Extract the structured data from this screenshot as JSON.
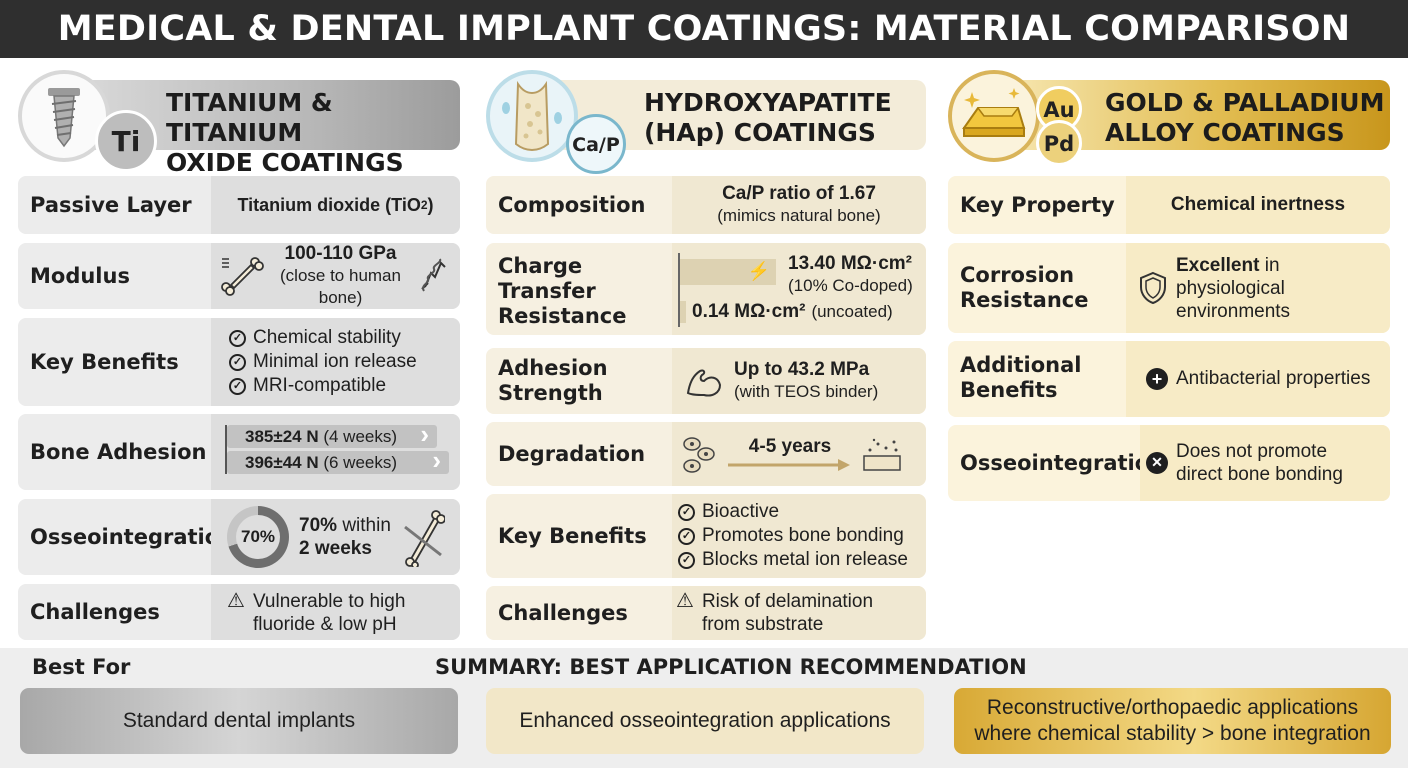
{
  "title": "MEDICAL & DENTAL IMPLANT COATINGS: MATERIAL COMPARISON",
  "columns": {
    "titanium": {
      "title_line1": "TITANIUM & TITANIUM",
      "title_line2": "OXIDE COATINGS",
      "badge": "Ti",
      "passive_layer": {
        "label": "Passive Layer",
        "value": "Titanium dioxide (TiO",
        "subscript": "2",
        "close": ")"
      },
      "modulus": {
        "label": "Modulus",
        "value": "100-110 GPa",
        "note": "(close to human bone)"
      },
      "key_benefits": {
        "label": "Key Benefits",
        "items": [
          "Chemical stability",
          "Minimal ion release",
          "MRI-compatible"
        ]
      },
      "bone_adhesion": {
        "label": "Bone Adhesion",
        "bars": [
          {
            "value": "385±24 N",
            "period": "(4 weeks)"
          },
          {
            "value": "396±44 N",
            "period": "(6 weeks)"
          }
        ]
      },
      "osseointegration": {
        "label": "Osseointegration",
        "percent_label": "70%",
        "percent": 70,
        "text_bold": "70%",
        "text_rest": "within",
        "text_line2": "2 weeks"
      },
      "challenges": {
        "label": "Challenges",
        "line1": "Vulnerable to high",
        "line2": "fluoride & low pH"
      }
    },
    "hap": {
      "title_line1": "HYDROXYAPATITE",
      "title_line2": "(HAp) COATINGS",
      "badge": "Ca/P",
      "composition": {
        "label": "Composition",
        "value": "Ca/P ratio of 1.67",
        "note": "(mimics natural bone)"
      },
      "charge_transfer": {
        "label_line1": "Charge",
        "label_line2": "Transfer",
        "label_line3": "Resistance",
        "high_value": "13.40 MΩ·cm²",
        "high_note": "(10% Co-doped)",
        "low_value": "0.14 MΩ·cm²",
        "low_note": "(uncoated)"
      },
      "adhesion": {
        "label_line1": "Adhesion",
        "label_line2": "Strength",
        "value": "Up to 43.2 MPa",
        "note": "(with TEOS binder)"
      },
      "degradation": {
        "label": "Degradation",
        "value": "4-5 years"
      },
      "key_benefits": {
        "label": "Key Benefits",
        "items": [
          "Bioactive",
          "Promotes bone bonding",
          "Blocks metal ion release"
        ]
      },
      "challenges": {
        "label": "Challenges",
        "line1": "Risk of delamination",
        "line2": "from substrate"
      }
    },
    "gold": {
      "title_line1": "GOLD & PALLADIUM",
      "title_line2": "ALLOY COATINGS",
      "badge_au": "Au",
      "badge_pd": "Pd",
      "key_property": {
        "label": "Key Property",
        "value": "Chemical inertness"
      },
      "corrosion": {
        "label_line1": "Corrosion",
        "label_line2": "Resistance",
        "value_bold": "Excellent",
        "value_rest": "in",
        "line2": "physiological",
        "line3": "environments"
      },
      "additional": {
        "label_line1": "Additional",
        "label_line2": "Benefits",
        "value": "Antibacterial properties"
      },
      "osseointegration": {
        "label": "Osseointegration",
        "line1": "Does not promote",
        "line2": "direct bone bonding"
      }
    }
  },
  "summary": {
    "best_for": "Best For",
    "title": "SUMMARY: BEST APPLICATION RECOMMENDATION",
    "titanium": "Standard dental implants",
    "hap": "Enhanced osseointegration applications",
    "gold_line1": "Reconstructive/orthopaedic applications",
    "gold_line2": "where chemical stability > bone integration"
  },
  "colors": {
    "title_bar": "#2f2f2f",
    "titanium": "#b8b8b8",
    "hap": "#f3ecd9",
    "gold": "#e2bd52"
  },
  "icons": [
    "screw-implant-icon",
    "bone-icon",
    "spring-icon",
    "check-circle-icon",
    "warning-icon",
    "bone-cross-section-icon",
    "lightning-icon",
    "muscle-arm-icon",
    "cells-icon",
    "arrow-right-icon",
    "gold-bar-icon",
    "shield-icon",
    "plus-circle-icon",
    "x-circle-icon"
  ]
}
